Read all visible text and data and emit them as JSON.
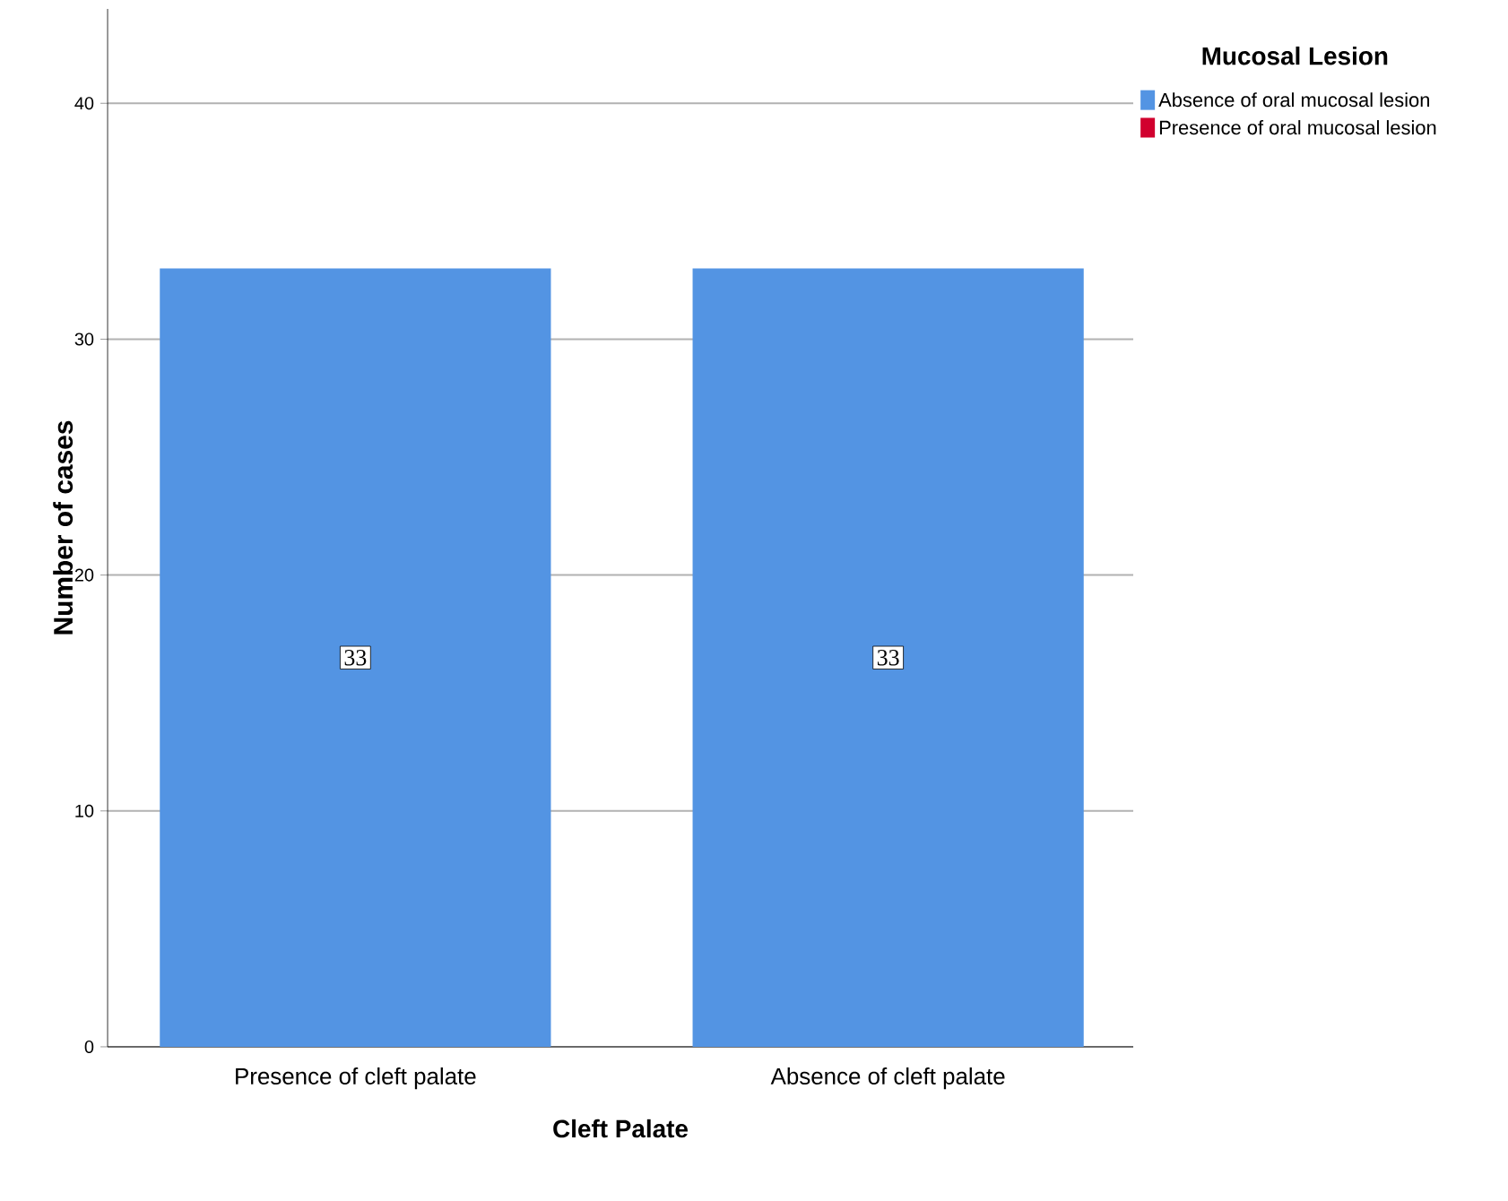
{
  "chart_data": {
    "type": "bar",
    "stacked": true,
    "xlabel": "Cleft Palate",
    "ylabel": "Number of cases",
    "legend_title": "Mucosal Lesion",
    "categories": [
      "Presence of cleft palate",
      "Absence of cleft palate"
    ],
    "series": [
      {
        "name": "Absence of oral mucosal lesion",
        "color": "#5394e3",
        "values": [
          33,
          33
        ],
        "value_labels": [
          "33",
          "33"
        ]
      },
      {
        "name": "Presence of oral mucosal lesion",
        "color": "#d1002e",
        "values": [
          0,
          0
        ],
        "value_labels": [
          null,
          null
        ]
      }
    ],
    "ylim": [
      0,
      44
    ],
    "yticks": [
      0,
      10,
      20,
      30,
      40
    ],
    "grid": "y",
    "legend": "top right"
  }
}
